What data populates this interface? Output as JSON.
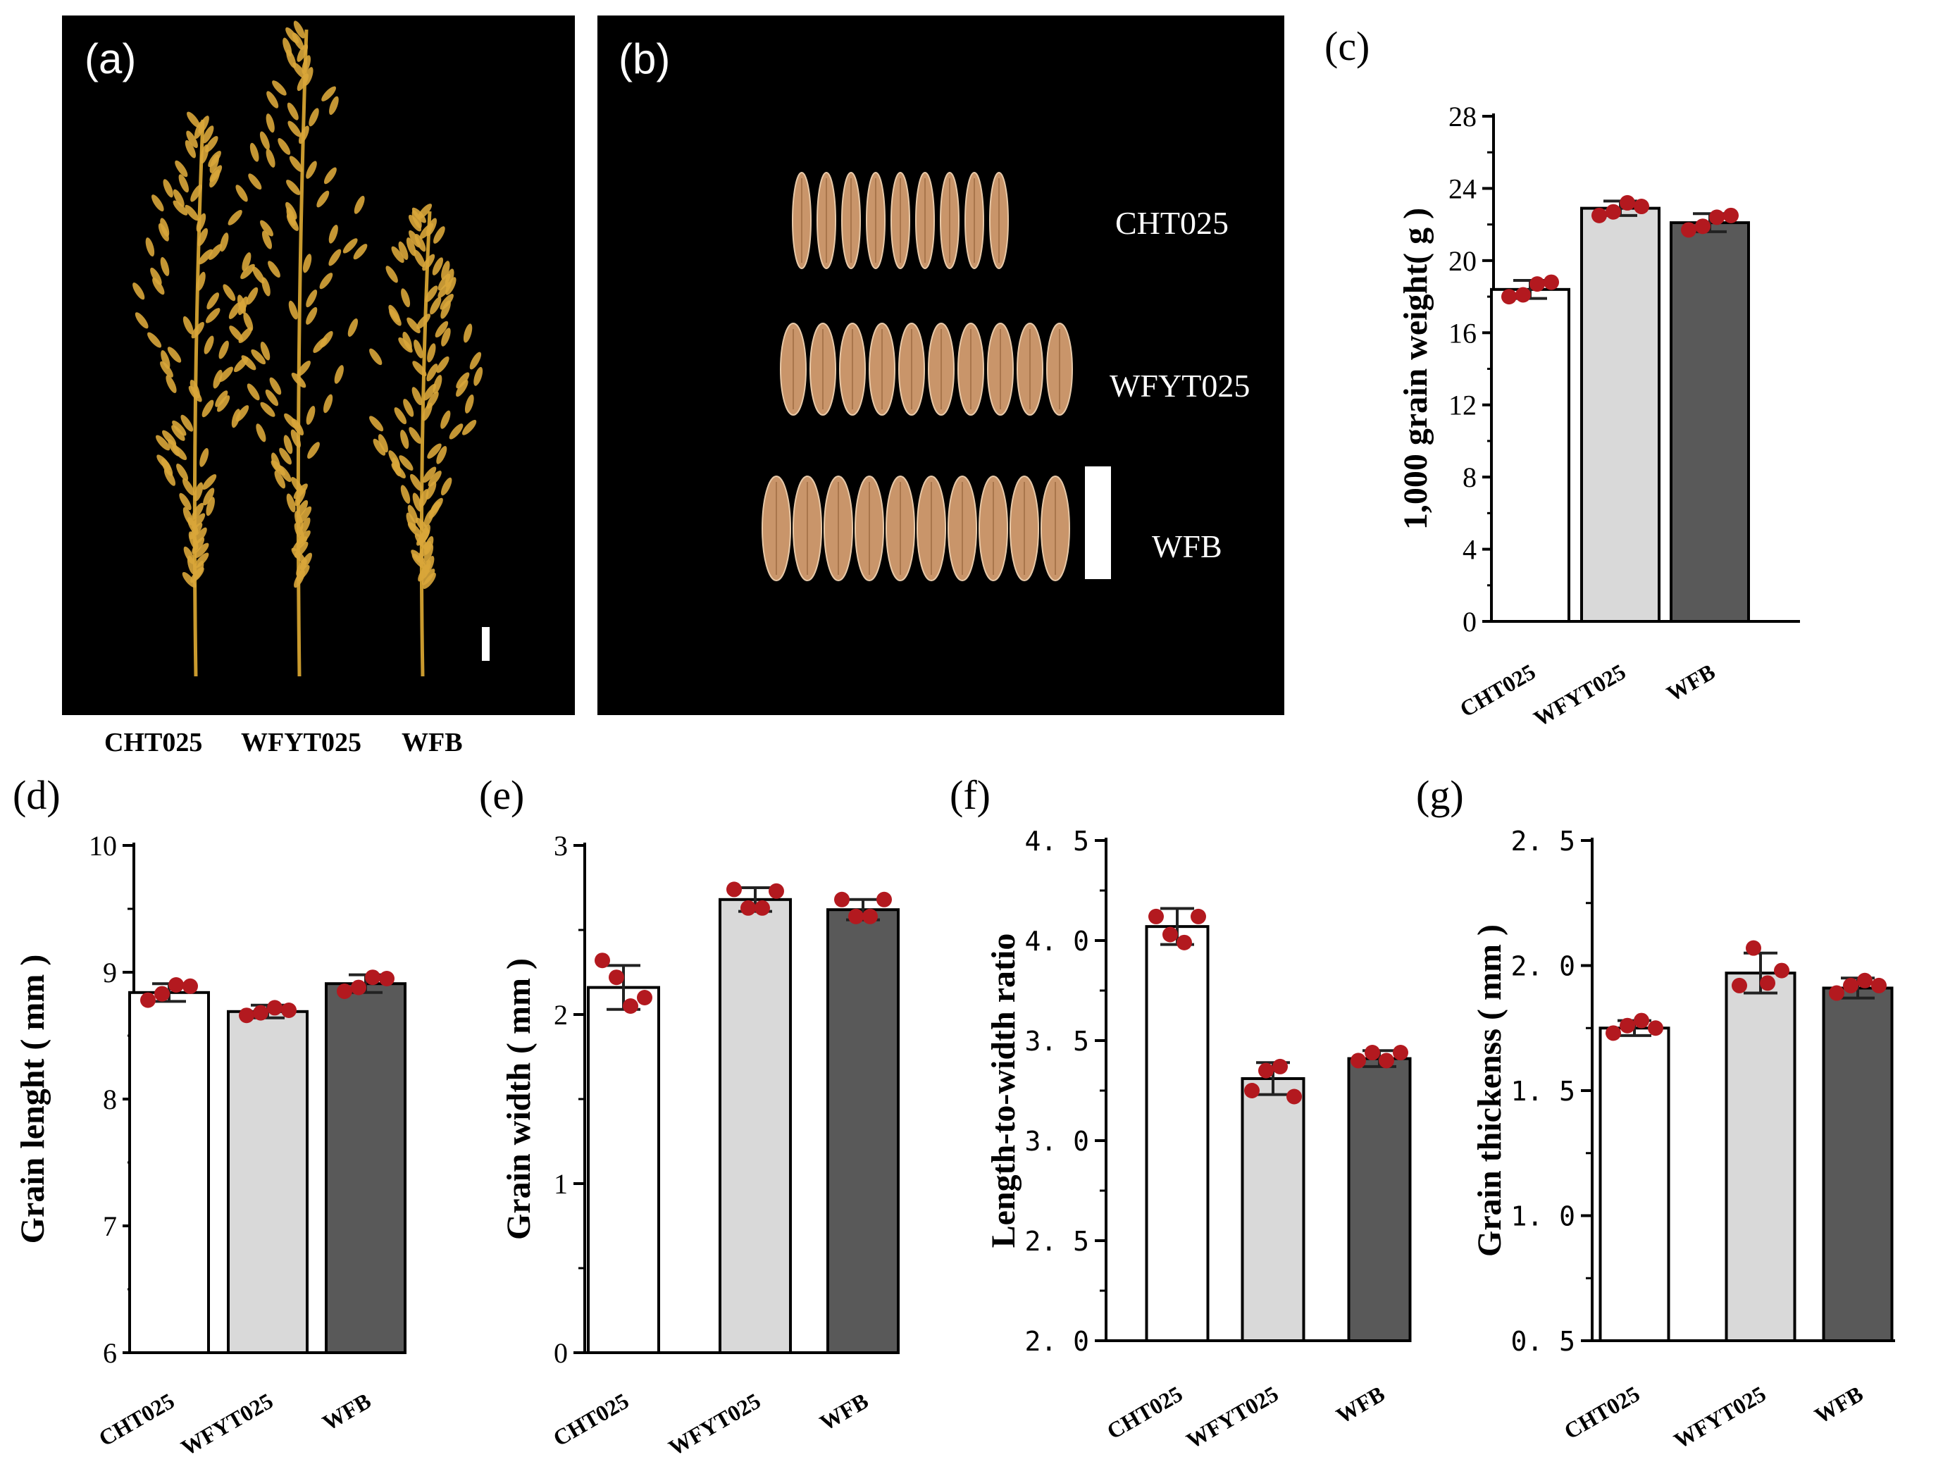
{
  "figure": {
    "panel_a": {
      "label": "(a)",
      "caption_labels": [
        "CHT025",
        "WFYT025",
        "WFB"
      ]
    },
    "panel_b": {
      "label": "(b)",
      "row_labels": [
        "CHT025",
        "WFYT025",
        "WFB"
      ]
    }
  },
  "colors": {
    "bar_fills": [
      "#ffffff",
      "#d9d9d9",
      "#595959"
    ],
    "point": "#b3191f",
    "photo_bg": "#000000",
    "panicle": "#d9a63a",
    "grain": "#c9956a"
  },
  "chart_data": [
    {
      "id": "c",
      "panel_label": "(c)",
      "type": "bar",
      "categories": [
        "CHT025",
        "WFYT025",
        "WFB"
      ],
      "values": [
        18.4,
        22.9,
        22.1
      ],
      "errors": [
        0.5,
        0.4,
        0.5
      ],
      "points": [
        [
          18.0,
          18.1,
          18.7,
          18.8
        ],
        [
          22.5,
          22.7,
          23.2,
          23.0
        ],
        [
          21.7,
          21.9,
          22.4,
          22.5
        ]
      ],
      "ylabel": "1,000 grain weight( g )",
      "ylim": [
        0,
        28
      ],
      "yticks": [
        "0",
        "4",
        "8",
        "12",
        "16",
        "20",
        "24",
        "28"
      ],
      "ytick_values": [
        0,
        4,
        8,
        12,
        16,
        20,
        24,
        28
      ]
    },
    {
      "id": "d",
      "panel_label": "(d)",
      "type": "bar",
      "categories": [
        "CHT025",
        "WFYT025",
        "WFB"
      ],
      "values": [
        8.84,
        8.69,
        8.91
      ],
      "errors": [
        0.07,
        0.05,
        0.07
      ],
      "points": [
        [
          8.78,
          8.83,
          8.9,
          8.89
        ],
        [
          8.66,
          8.68,
          8.72,
          8.7
        ],
        [
          8.85,
          8.88,
          8.96,
          8.95
        ]
      ],
      "ylabel": "Grain lenght ( mm )",
      "ylim": [
        6,
        10
      ],
      "yticks": [
        "6",
        "7",
        "8",
        "9",
        "10"
      ],
      "ytick_values": [
        6,
        7,
        8,
        9,
        10
      ]
    },
    {
      "id": "e",
      "panel_label": "(e)",
      "type": "bar",
      "categories": [
        "CHT025",
        "WFYT025",
        "WFB"
      ],
      "values": [
        2.16,
        2.68,
        2.62
      ],
      "errors": [
        0.13,
        0.07,
        0.06
      ],
      "points": [
        [
          2.32,
          2.22,
          2.05,
          2.1
        ],
        [
          2.74,
          2.63,
          2.63,
          2.73
        ],
        [
          2.68,
          2.58,
          2.58,
          2.68
        ]
      ],
      "ylabel": "Grain width ( mm )",
      "ylim": [
        0,
        3
      ],
      "yticks": [
        "0",
        "1",
        "2",
        "3"
      ],
      "ytick_values": [
        0,
        1,
        2,
        3
      ]
    },
    {
      "id": "f",
      "panel_label": "(f)",
      "type": "bar",
      "categories": [
        "CHT025",
        "WFYT025",
        "WFB"
      ],
      "values": [
        4.07,
        3.31,
        3.41
      ],
      "errors": [
        0.09,
        0.08,
        0.04
      ],
      "points": [
        [
          4.12,
          4.03,
          3.99,
          4.12
        ],
        [
          3.25,
          3.35,
          3.37,
          3.22
        ],
        [
          3.4,
          3.44,
          3.4,
          3.44
        ]
      ],
      "ylabel": "Length-to-width ratio",
      "ylim": [
        2.0,
        4.5
      ],
      "yticks": [
        "2. 0",
        "2. 5",
        "3. 0",
        "3. 5",
        "4. 0",
        "4. 5"
      ],
      "ytick_values": [
        2.0,
        2.5,
        3.0,
        3.5,
        4.0,
        4.5
      ]
    },
    {
      "id": "g",
      "panel_label": "(g)",
      "type": "bar",
      "categories": [
        "CHT025",
        "WFYT025",
        "WFB"
      ],
      "values": [
        1.75,
        1.97,
        1.91
      ],
      "errors": [
        0.03,
        0.08,
        0.04
      ],
      "points": [
        [
          1.73,
          1.76,
          1.78,
          1.75
        ],
        [
          1.92,
          2.07,
          1.93,
          1.98
        ],
        [
          1.89,
          1.92,
          1.94,
          1.92
        ]
      ],
      "ylabel": "Grain thickenss ( mm )",
      "ylim": [
        0.5,
        2.5
      ],
      "yticks": [
        "0. 5",
        "1. 0",
        "1. 5",
        "2. 0",
        "2. 5"
      ],
      "ytick_values": [
        0.5,
        1.0,
        1.5,
        2.0,
        2.5
      ]
    }
  ]
}
